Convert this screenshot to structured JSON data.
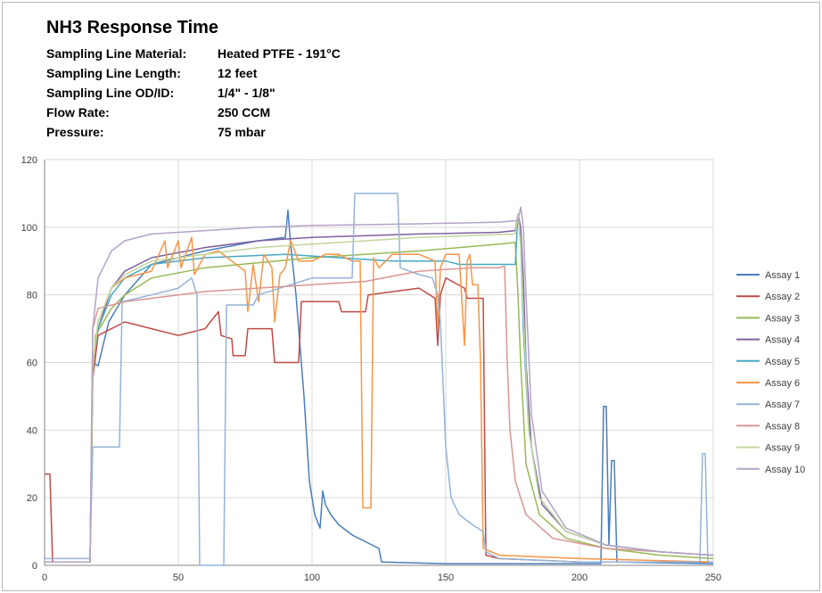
{
  "chart_data": {
    "type": "line",
    "title": "NH3 Response Time",
    "info": [
      {
        "label": "Sampling Line Material:",
        "value": "Heated PTFE - 191°C"
      },
      {
        "label": "Sampling Line Length:",
        "value": "12 feet"
      },
      {
        "label": "Sampling Line OD/ID:",
        "value": "1/4\" - 1/8\""
      },
      {
        "label": "Flow Rate:",
        "value": "250 CCM"
      },
      {
        "label": "Pressure:",
        "value": "75 mbar"
      }
    ],
    "xlabel": "",
    "ylabel": "",
    "xlim": [
      0,
      250
    ],
    "ylim": [
      0,
      120
    ],
    "xticks": [
      0,
      50,
      100,
      150,
      200,
      250
    ],
    "yticks": [
      0,
      20,
      40,
      60,
      80,
      100,
      120
    ],
    "grid": true,
    "legend_position": "right",
    "series": [
      {
        "name": "Assay 1",
        "color": "#4a7ebb",
        "points": [
          [
            0,
            1
          ],
          [
            17,
            1
          ],
          [
            18,
            60
          ],
          [
            20,
            59
          ],
          [
            24,
            72
          ],
          [
            30,
            80
          ],
          [
            40,
            89
          ],
          [
            60,
            93
          ],
          [
            80,
            96
          ],
          [
            90,
            97
          ],
          [
            91,
            105
          ],
          [
            92,
            95
          ],
          [
            94,
            80
          ],
          [
            97,
            50
          ],
          [
            99,
            25
          ],
          [
            101,
            15
          ],
          [
            103,
            11
          ],
          [
            104,
            22
          ],
          [
            105,
            18
          ],
          [
            107,
            15
          ],
          [
            110,
            12
          ],
          [
            115,
            9
          ],
          [
            120,
            7
          ],
          [
            125,
            5
          ],
          [
            126,
            1
          ],
          [
            150,
            0.5
          ],
          [
            208,
            0.5
          ],
          [
            209,
            47
          ],
          [
            210,
            47
          ],
          [
            211,
            6
          ],
          [
            212,
            31
          ],
          [
            213,
            31
          ],
          [
            214,
            1
          ],
          [
            250,
            0.5
          ]
        ]
      },
      {
        "name": "Assay 2",
        "color": "#be4b48",
        "points": [
          [
            0,
            27
          ],
          [
            2,
            27
          ],
          [
            3,
            1
          ],
          [
            17,
            1
          ],
          [
            18,
            55
          ],
          [
            20,
            68
          ],
          [
            25,
            70
          ],
          [
            30,
            72
          ],
          [
            40,
            70
          ],
          [
            50,
            68
          ],
          [
            60,
            70
          ],
          [
            65,
            75
          ],
          [
            66,
            68
          ],
          [
            70,
            67
          ],
          [
            70.5,
            62
          ],
          [
            75,
            62
          ],
          [
            76,
            70
          ],
          [
            85,
            70
          ],
          [
            86,
            60
          ],
          [
            95,
            60
          ],
          [
            96,
            78
          ],
          [
            110,
            78
          ],
          [
            111,
            75
          ],
          [
            120,
            75
          ],
          [
            121,
            80
          ],
          [
            140,
            82
          ],
          [
            146,
            79
          ],
          [
            147,
            65
          ],
          [
            148,
            80
          ],
          [
            150,
            85
          ],
          [
            157,
            82
          ],
          [
            158,
            79
          ],
          [
            164,
            79
          ],
          [
            165,
            3
          ],
          [
            170,
            2
          ],
          [
            200,
            1
          ],
          [
            250,
            1
          ]
        ]
      },
      {
        "name": "Assay 3",
        "color": "#98b954",
        "points": [
          [
            0,
            1
          ],
          [
            17,
            1
          ],
          [
            18,
            55
          ],
          [
            19,
            68
          ],
          [
            25,
            76
          ],
          [
            30,
            80
          ],
          [
            40,
            85
          ],
          [
            60,
            88
          ],
          [
            100,
            91
          ],
          [
            140,
            93
          ],
          [
            170,
            95
          ],
          [
            176,
            95.5
          ],
          [
            177,
            80
          ],
          [
            178,
            60
          ],
          [
            180,
            30
          ],
          [
            185,
            15
          ],
          [
            195,
            8
          ],
          [
            210,
            5
          ],
          [
            230,
            3
          ],
          [
            250,
            2
          ]
        ]
      },
      {
        "name": "Assay 4",
        "color": "#7d60a0",
        "points": [
          [
            0,
            1
          ],
          [
            17,
            1
          ],
          [
            18,
            60
          ],
          [
            20,
            70
          ],
          [
            25,
            82
          ],
          [
            30,
            87
          ],
          [
            40,
            91
          ],
          [
            60,
            94
          ],
          [
            80,
            96
          ],
          [
            100,
            97
          ],
          [
            140,
            98
          ],
          [
            170,
            98.5
          ],
          [
            176,
            99
          ],
          [
            177,
            104
          ],
          [
            178,
            100
          ],
          [
            179,
            85
          ],
          [
            180,
            60
          ],
          [
            182,
            35
          ],
          [
            186,
            18
          ],
          [
            195,
            10
          ],
          [
            210,
            6
          ],
          [
            230,
            4
          ],
          [
            250,
            3
          ]
        ]
      },
      {
        "name": "Assay 5",
        "color": "#46aac5",
        "points": [
          [
            0,
            1
          ],
          [
            17,
            1
          ],
          [
            18,
            58
          ],
          [
            20,
            70
          ],
          [
            25,
            80
          ],
          [
            30,
            85
          ],
          [
            40,
            89
          ],
          [
            60,
            91
          ],
          [
            90,
            92
          ],
          [
            110,
            91
          ],
          [
            130,
            90
          ],
          [
            150,
            90
          ],
          [
            155,
            89
          ],
          [
            176,
            89
          ],
          [
            177,
            104
          ],
          [
            178,
            95
          ],
          [
            179,
            70
          ],
          [
            181,
            40
          ],
          [
            185,
            20
          ],
          [
            195,
            10
          ],
          [
            210,
            6
          ],
          [
            230,
            4
          ],
          [
            250,
            3
          ]
        ]
      },
      {
        "name": "Assay 6",
        "color": "#f79646",
        "points": [
          [
            0,
            1
          ],
          [
            17,
            1
          ],
          [
            18,
            58
          ],
          [
            20,
            72
          ],
          [
            25,
            82
          ],
          [
            30,
            85
          ],
          [
            40,
            87
          ],
          [
            45,
            96
          ],
          [
            46,
            88
          ],
          [
            50,
            96
          ],
          [
            51,
            88
          ],
          [
            55,
            97
          ],
          [
            56,
            86
          ],
          [
            60,
            92
          ],
          [
            65,
            93
          ],
          [
            70,
            90
          ],
          [
            75,
            87
          ],
          [
            76,
            75
          ],
          [
            78,
            89
          ],
          [
            80,
            78
          ],
          [
            82,
            92
          ],
          [
            85,
            88
          ],
          [
            86,
            72
          ],
          [
            88,
            86
          ],
          [
            90,
            88
          ],
          [
            92,
            96
          ],
          [
            95,
            90
          ],
          [
            100,
            90
          ],
          [
            105,
            92
          ],
          [
            110,
            92
          ],
          [
            115,
            90
          ],
          [
            118,
            90
          ],
          [
            119,
            17
          ],
          [
            122,
            17
          ],
          [
            123,
            91
          ],
          [
            125,
            88
          ],
          [
            130,
            92
          ],
          [
            140,
            92
          ],
          [
            146,
            90
          ],
          [
            147,
            70
          ],
          [
            148,
            88
          ],
          [
            150,
            92
          ],
          [
            155,
            92
          ],
          [
            157,
            65
          ],
          [
            158,
            90
          ],
          [
            159,
            92
          ],
          [
            160,
            83
          ],
          [
            162,
            83
          ],
          [
            163,
            60
          ],
          [
            164,
            5
          ],
          [
            170,
            3
          ],
          [
            200,
            2
          ],
          [
            250,
            1
          ]
        ]
      },
      {
        "name": "Assay 7",
        "color": "#95b3d7",
        "points": [
          [
            0,
            2
          ],
          [
            17,
            2
          ],
          [
            18,
            35
          ],
          [
            28,
            35
          ],
          [
            29,
            78
          ],
          [
            40,
            80
          ],
          [
            50,
            82
          ],
          [
            55,
            85
          ],
          [
            57,
            80
          ],
          [
            58,
            0
          ],
          [
            67,
            0
          ],
          [
            68,
            77
          ],
          [
            78,
            77
          ],
          [
            80,
            80
          ],
          [
            100,
            85
          ],
          [
            115,
            85
          ],
          [
            116,
            110
          ],
          [
            132,
            110
          ],
          [
            133,
            88
          ],
          [
            140,
            86
          ],
          [
            145,
            85
          ],
          [
            147,
            80
          ],
          [
            148,
            72
          ],
          [
            150,
            35
          ],
          [
            152,
            20
          ],
          [
            155,
            15
          ],
          [
            160,
            12
          ],
          [
            164,
            10
          ],
          [
            165,
            4
          ],
          [
            170,
            2
          ],
          [
            200,
            1
          ],
          [
            245,
            1
          ],
          [
            246,
            33
          ],
          [
            247,
            33
          ],
          [
            248,
            1
          ],
          [
            250,
            1
          ]
        ]
      },
      {
        "name": "Assay 8",
        "color": "#d99694",
        "points": [
          [
            0,
            1
          ],
          [
            17,
            1
          ],
          [
            18,
            70
          ],
          [
            20,
            76
          ],
          [
            30,
            78
          ],
          [
            40,
            79
          ],
          [
            50,
            80
          ],
          [
            60,
            81
          ],
          [
            80,
            82
          ],
          [
            100,
            83
          ],
          [
            120,
            84
          ],
          [
            140,
            87
          ],
          [
            160,
            88
          ],
          [
            170,
            88
          ],
          [
            172,
            88.5
          ],
          [
            173,
            60
          ],
          [
            174,
            40
          ],
          [
            176,
            25
          ],
          [
            180,
            15
          ],
          [
            190,
            8
          ],
          [
            210,
            5
          ],
          [
            250,
            3
          ]
        ]
      },
      {
        "name": "Assay 9",
        "color": "#c3d69b",
        "points": [
          [
            0,
            1
          ],
          [
            17,
            1
          ],
          [
            18,
            60
          ],
          [
            20,
            72
          ],
          [
            25,
            82
          ],
          [
            30,
            86
          ],
          [
            40,
            90
          ],
          [
            60,
            92
          ],
          [
            80,
            94
          ],
          [
            100,
            95
          ],
          [
            140,
            97
          ],
          [
            176,
            98
          ],
          [
            177,
            104
          ],
          [
            178,
            95
          ],
          [
            179,
            75
          ],
          [
            181,
            40
          ],
          [
            185,
            20
          ],
          [
            195,
            10
          ],
          [
            210,
            6
          ],
          [
            230,
            4
          ],
          [
            250,
            3
          ]
        ]
      },
      {
        "name": "Assay 10",
        "color": "#b3a2c7",
        "points": [
          [
            0,
            1
          ],
          [
            17,
            1
          ],
          [
            18,
            70
          ],
          [
            20,
            85
          ],
          [
            25,
            93
          ],
          [
            30,
            96
          ],
          [
            40,
            98
          ],
          [
            60,
            99
          ],
          [
            80,
            100
          ],
          [
            100,
            100.5
          ],
          [
            140,
            101
          ],
          [
            170,
            101.5
          ],
          [
            177,
            102
          ],
          [
            178,
            106
          ],
          [
            179,
            100
          ],
          [
            180,
            80
          ],
          [
            182,
            45
          ],
          [
            186,
            22
          ],
          [
            195,
            11
          ],
          [
            210,
            6
          ],
          [
            230,
            4
          ],
          [
            250,
            3
          ]
        ]
      }
    ]
  }
}
